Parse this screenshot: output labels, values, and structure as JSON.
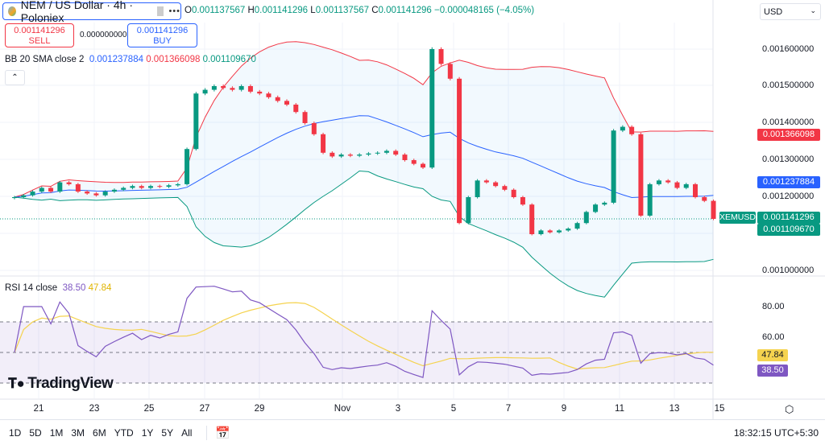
{
  "header": {
    "symbol_title": "NEM / US Dollar · 4h · Poloniex",
    "more_label": "•••",
    "ohlc": {
      "o_label": "O",
      "o": "0.001137567",
      "h_label": "H",
      "h": "0.001141296",
      "l_label": "L",
      "l": "0.001137567",
      "c_label": "C",
      "c": "0.001141296",
      "change": "−0.000048165 (−4.05%)"
    },
    "sell_price": "0.001141296",
    "sell_label": "SELL",
    "spread": "0.000000000",
    "buy_price": "0.001141296",
    "buy_label": "BUY",
    "collapse_icon": "chevron-up-icon"
  },
  "bb_legend": {
    "label": "BB 20 SMA close 2",
    "basis": "0.001237884",
    "upper": "0.001366098",
    "lower": "0.001109670"
  },
  "rsi_legend": {
    "label": "RSI 14 close",
    "rsi": "38.50",
    "ma": "47.84"
  },
  "currency": "USD",
  "price_axis": [
    "0.001600000",
    "0.001500000",
    "0.001400000",
    "0.001300000",
    "0.001200000",
    "0.001000000"
  ],
  "price_tags": {
    "upper": "0.001366098",
    "basis": "0.001237884",
    "last": "0.001141296",
    "lower": "0.001109670",
    "symbol": "XEMUSD"
  },
  "rsi_axis": [
    "80.00",
    "60.00"
  ],
  "rsi_tags": {
    "ma": "47.84",
    "rsi": "38.50"
  },
  "time_axis": [
    "21",
    "23",
    "25",
    "27",
    "29",
    "Nov",
    "3",
    "5",
    "7",
    "9",
    "11",
    "13",
    "15"
  ],
  "ranges": [
    "1D",
    "5D",
    "1M",
    "3M",
    "6M",
    "YTD",
    "1Y",
    "5Y",
    "All"
  ],
  "clock": "18:32:15 UTC+5:30",
  "brand": "TradingView",
  "colors": {
    "up": "#089981",
    "down": "#f23645",
    "basis": "#2962ff",
    "rsi": "#7e57c2",
    "rsi_ma": "#f5d34f"
  },
  "chart_data": {
    "type": "candlestick",
    "title": "NEM / US Dollar · 4h · Poloniex",
    "x_start": "Oct 20",
    "x_end": "Nov 14",
    "ylim": [
      0.00095,
      0.00168
    ],
    "closes": [
      0.0012,
      0.001205,
      0.001215,
      0.001225,
      0.001215,
      0.00124,
      0.001235,
      0.001215,
      0.00121,
      0.001205,
      0.001215,
      0.00122,
      0.001225,
      0.00123,
      0.001225,
      0.00123,
      0.001228,
      0.001232,
      0.001235,
      0.00133,
      0.00148,
      0.00149,
      0.0015,
      0.001495,
      0.00149,
      0.0015,
      0.001485,
      0.00148,
      0.00147,
      0.00146,
      0.00145,
      0.00143,
      0.0014,
      0.00137,
      0.00132,
      0.00131,
      0.001315,
      0.001312,
      0.001315,
      0.001318,
      0.00132,
      0.001325,
      0.001315,
      0.0013,
      0.00129,
      0.00128,
      0.0016,
      0.00156,
      0.00152,
      0.00113,
      0.0012,
      0.001245,
      0.00124,
      0.00123,
      0.00122,
      0.0012,
      0.00118,
      0.0011,
      0.00111,
      0.001105,
      0.00111,
      0.001115,
      0.00113,
      0.00116,
      0.00118,
      0.001185,
      0.00138,
      0.00139,
      0.00137,
      0.00115,
      0.001235,
      0.001245,
      0.00124,
      0.001225,
      0.001235,
      0.0012,
      0.00119,
      0.001141296
    ],
    "indicators": [
      "BB 20 SMA close 2",
      "RSI 14 close"
    ],
    "rsi_levels": [
      70,
      50,
      30
    ],
    "rsi_ylim": [
      15,
      95
    ]
  }
}
